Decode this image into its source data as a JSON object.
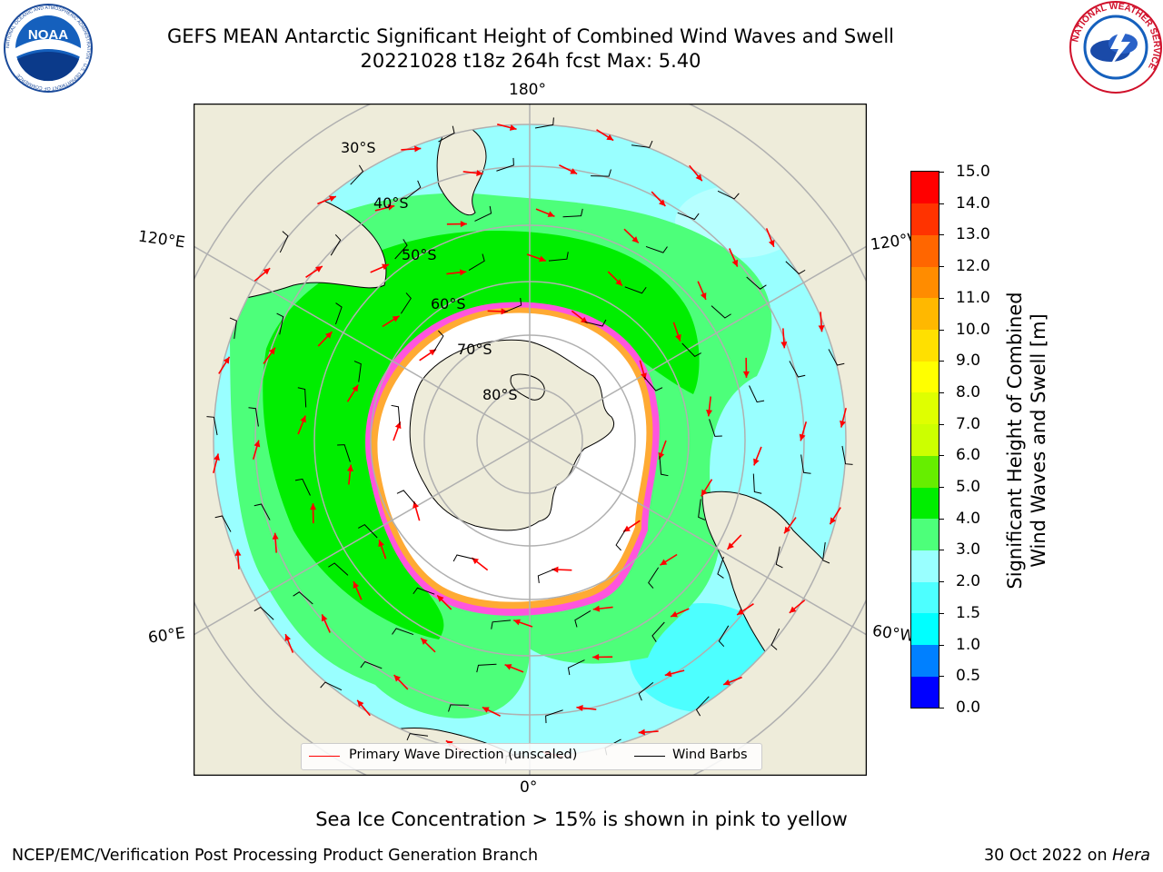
{
  "title": {
    "line1": "GEFS MEAN Antarctic Significant Height of Combined Wind Waves and Swell",
    "line2": "20221028 t18z 264h fcst   Max: 5.40"
  },
  "logos": {
    "noaa_text": "NOAA",
    "noaa_ring": "NATIONAL OCEANIC AND ATMOSPHERIC ADMINISTRATION · U.S. DEPARTMENT OF COMMERCE",
    "nws_ring": "NATIONAL WEATHER SERVICE"
  },
  "map": {
    "projection": "south-polar-stereographic",
    "longitude_labels": {
      "top": "180°",
      "bottom": "0°",
      "left_upper": "120°E",
      "left_lower": "60°E",
      "right_upper": "120°W",
      "right_lower": "60°W"
    },
    "latitude_labels": [
      "30°S",
      "40°S",
      "50°S",
      "60°S",
      "70°S",
      "80°S"
    ],
    "colors": {
      "land": "#eeecda",
      "ocean_low": "#4dffff",
      "ocean_mid": "#99ffff",
      "wave_3_4": "#4dff7a",
      "wave_4_5": "#00ee00",
      "ice_pink": "#ff55dd",
      "ice_yellow": "#ffaa33",
      "ice_white": "#ffffff",
      "arrow": "#ff0000",
      "barb": "#000000",
      "grid": "#b0b0b0"
    }
  },
  "legend": {
    "wave_label": "Primary Wave Direction (unscaled)",
    "wave_color": "#ff0000",
    "wind_label": "Wind Barbs",
    "wind_color": "#000000"
  },
  "colorbar": {
    "label_line1": "Significant Height of Combined",
    "label_line2": "Wind Waves and Swell [m]",
    "ticks": [
      "0.0",
      "0.5",
      "1.0",
      "1.5",
      "2.0",
      "3.0",
      "4.0",
      "5.0",
      "6.0",
      "7.0",
      "8.0",
      "9.0",
      "10.0",
      "11.0",
      "12.0",
      "13.0",
      "14.0",
      "15.0"
    ],
    "colors": [
      "#0000ff",
      "#0080ff",
      "#00ffff",
      "#4dffff",
      "#99ffff",
      "#4dff7a",
      "#00ee00",
      "#66ee00",
      "#ccff00",
      "#dfff00",
      "#ffff00",
      "#ffe000",
      "#ffb800",
      "#ff8c00",
      "#ff6600",
      "#ff3300",
      "#ff0000"
    ]
  },
  "subtitle": "Sea Ice Concentration > 15% is shown in pink to yellow",
  "footer": {
    "left": "NCEP/EMC/Verification Post Processing Product Generation Branch",
    "right_date": "30 Oct 2022 on ",
    "right_host": "Hera"
  }
}
